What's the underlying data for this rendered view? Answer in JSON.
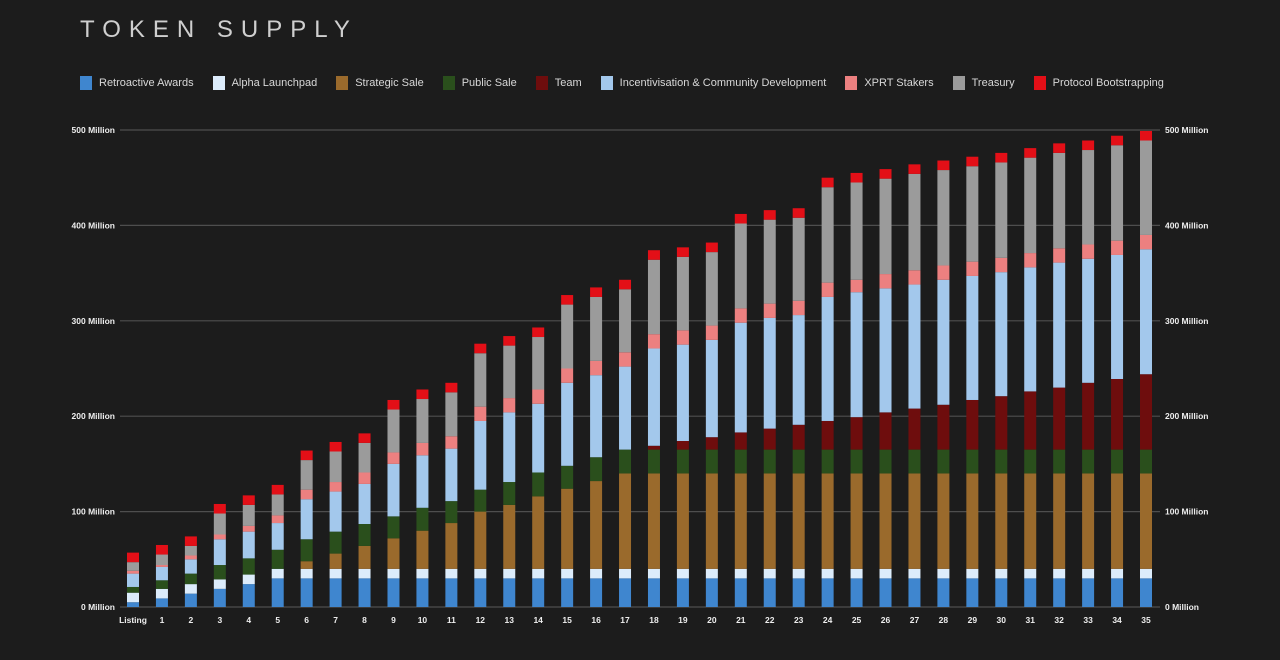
{
  "chart_data": {
    "type": "bar",
    "stacked": true,
    "title": "TOKEN SUPPLY",
    "xlabel": "",
    "ylabel": "",
    "ylim": [
      0,
      500
    ],
    "y_ticks": [
      0,
      100,
      200,
      300,
      400,
      500
    ],
    "y_tick_labels": [
      "0 Million",
      "100 Million",
      "200 Million",
      "300 Million",
      "400 Million",
      "500 Million"
    ],
    "grid": true,
    "legend_position": "top",
    "categories": [
      "Listing",
      "1",
      "2",
      "3",
      "4",
      "5",
      "6",
      "7",
      "8",
      "9",
      "10",
      "11",
      "12",
      "13",
      "14",
      "15",
      "16",
      "17",
      "18",
      "19",
      "20",
      "21",
      "22",
      "23",
      "24",
      "25",
      "26",
      "27",
      "28",
      "29",
      "30",
      "31",
      "32",
      "33",
      "34",
      "35"
    ],
    "series": [
      {
        "name": "Retroactive Awards",
        "color": "#3f86cf",
        "values": [
          5,
          9,
          14,
          19,
          24,
          30,
          30,
          30,
          30,
          30,
          30,
          30,
          30,
          30,
          30,
          30,
          30,
          30,
          30,
          30,
          30,
          30,
          30,
          30,
          30,
          30,
          30,
          30,
          30,
          30,
          30,
          30,
          30,
          30,
          30,
          30
        ]
      },
      {
        "name": "Alpha Launchpad",
        "color": "#dcecfb",
        "values": [
          10,
          10,
          10,
          10,
          10,
          10,
          10,
          10,
          10,
          10,
          10,
          10,
          10,
          10,
          10,
          10,
          10,
          10,
          10,
          10,
          10,
          10,
          10,
          10,
          10,
          10,
          10,
          10,
          10,
          10,
          10,
          10,
          10,
          10,
          10,
          10
        ]
      },
      {
        "name": "Strategic Sale",
        "color": "#9a6a2c",
        "values": [
          0,
          0,
          0,
          0,
          0,
          0,
          8,
          16,
          24,
          32,
          40,
          48,
          60,
          67,
          76,
          84,
          92,
          100,
          100,
          100,
          100,
          100,
          100,
          100,
          100,
          100,
          100,
          100,
          100,
          100,
          100,
          100,
          100,
          100,
          100,
          100
        ]
      },
      {
        "name": "Public Sale",
        "color": "#2a4f1c",
        "values": [
          6,
          9,
          11,
          15,
          17,
          20,
          23,
          23,
          23,
          23,
          24,
          23,
          23,
          24,
          25,
          24,
          25,
          25,
          25,
          25,
          25,
          25,
          25,
          25,
          25,
          25,
          25,
          25,
          25,
          25,
          25,
          25,
          25,
          25,
          25,
          25
        ]
      },
      {
        "name": "Team",
        "color": "#6e0d0d",
        "values": [
          0,
          0,
          0,
          0,
          0,
          0,
          0,
          0,
          0,
          0,
          0,
          0,
          0,
          0,
          0,
          0,
          0,
          0,
          4,
          9,
          13,
          18,
          22,
          26,
          30,
          34,
          39,
          43,
          47,
          52,
          56,
          61,
          65,
          70,
          74,
          79
        ]
      },
      {
        "name": "Incentivisation & Community Development",
        "color": "#a3c8ec",
        "values": [
          14,
          14,
          15,
          27,
          28,
          28,
          42,
          42,
          42,
          55,
          55,
          55,
          72,
          73,
          72,
          87,
          86,
          87,
          102,
          101,
          102,
          115,
          116,
          115,
          130,
          131,
          130,
          130,
          131,
          130,
          130,
          130,
          131,
          130,
          130,
          131
        ]
      },
      {
        "name": "XPRT Stakers",
        "color": "#ec8080",
        "values": [
          3,
          2,
          4,
          5,
          6,
          8,
          10,
          10,
          12,
          12,
          13,
          13,
          15,
          15,
          15,
          15,
          15,
          15,
          15,
          15,
          15,
          15,
          15,
          15,
          15,
          13,
          15,
          15,
          15,
          15,
          15,
          15,
          15,
          15,
          15,
          15
        ]
      },
      {
        "name": "Treasury",
        "color": "#9b9b9b",
        "values": [
          9,
          11,
          10,
          22,
          22,
          22,
          31,
          32,
          31,
          45,
          46,
          46,
          56,
          55,
          55,
          67,
          67,
          66,
          78,
          77,
          77,
          89,
          88,
          87,
          100,
          102,
          100,
          101,
          100,
          100,
          100,
          100,
          100,
          99,
          100,
          99
        ]
      },
      {
        "name": "Protocol Bootstrapping",
        "color": "#e30f17",
        "values": [
          10,
          10,
          10,
          10,
          10,
          10,
          10,
          10,
          10,
          10,
          10,
          10,
          10,
          10,
          10,
          10,
          10,
          10,
          10,
          10,
          10,
          10,
          10,
          10,
          10,
          10,
          10,
          10,
          10,
          10,
          10,
          10,
          10,
          10,
          10,
          10
        ]
      }
    ]
  }
}
